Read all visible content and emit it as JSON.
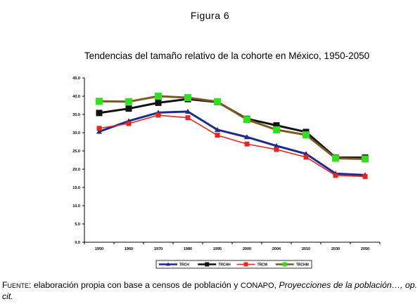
{
  "figure_label": "Figura 6",
  "source_text": {
    "prefix": "Fuente",
    "body_a": ": elaboración propia con base a censos de población y ",
    "org": "CONAPO",
    "body_b": ", ",
    "title_italic": "Proyecciones de la población…, op. cit.",
    "tail": ""
  },
  "chart_data": {
    "type": "line",
    "title": "Tendencias del tamaño relativo de la cohorte en México, 1950-2050",
    "xlabel": "",
    "ylabel": "",
    "categories": [
      "1950",
      "1960",
      "1970",
      "1980",
      "1995",
      "2000",
      "2004",
      "2010",
      "2030",
      "2050"
    ],
    "yticks": [
      "0.0",
      "5.0",
      "10.0",
      "15.0",
      "20.0",
      "25.0",
      "30.0",
      "35.0",
      "40.0",
      "45.0"
    ],
    "ylim": [
      0,
      45
    ],
    "grid": false,
    "legend_position": "bottom",
    "series": [
      {
        "name": "TRCH",
        "color": "#1c2a8c",
        "marker": "triangle",
        "values": [
          30.3,
          33.2,
          35.5,
          35.8,
          30.8,
          28.8,
          26.4,
          24.2,
          18.8,
          18.4
        ]
      },
      {
        "name": "TRCHH",
        "color": "#111111",
        "marker": "square",
        "values": [
          35.4,
          36.6,
          38.2,
          39.2,
          38.4,
          33.8,
          32.0,
          30.2,
          23.2,
          23.2
        ]
      },
      {
        "name": "TRCM",
        "color": "#e0281e",
        "marker": "square",
        "values": [
          31.2,
          32.5,
          34.8,
          34.1,
          29.3,
          26.9,
          25.4,
          23.3,
          18.3,
          18.0
        ]
      },
      {
        "name": "TRCHM",
        "color": "#7a5a1e",
        "marker": "square",
        "marker_color": "#33dd22",
        "values": [
          38.6,
          38.5,
          40.0,
          39.6,
          38.5,
          33.6,
          30.8,
          29.4,
          23.0,
          22.8
        ]
      }
    ]
  }
}
